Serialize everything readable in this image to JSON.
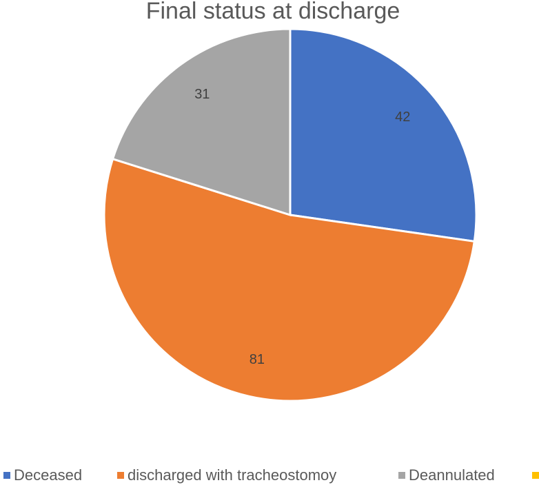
{
  "chart_data": {
    "type": "pie",
    "title": "Final status at discharge",
    "categories": [
      "Deceased",
      "discharged with tracheostomoy",
      "Deannulated",
      null
    ],
    "values": [
      42,
      81,
      31,
      0
    ],
    "colors": [
      "#4472c4",
      "#ed7d31",
      "#a5a5a5",
      "#ffc000"
    ]
  }
}
